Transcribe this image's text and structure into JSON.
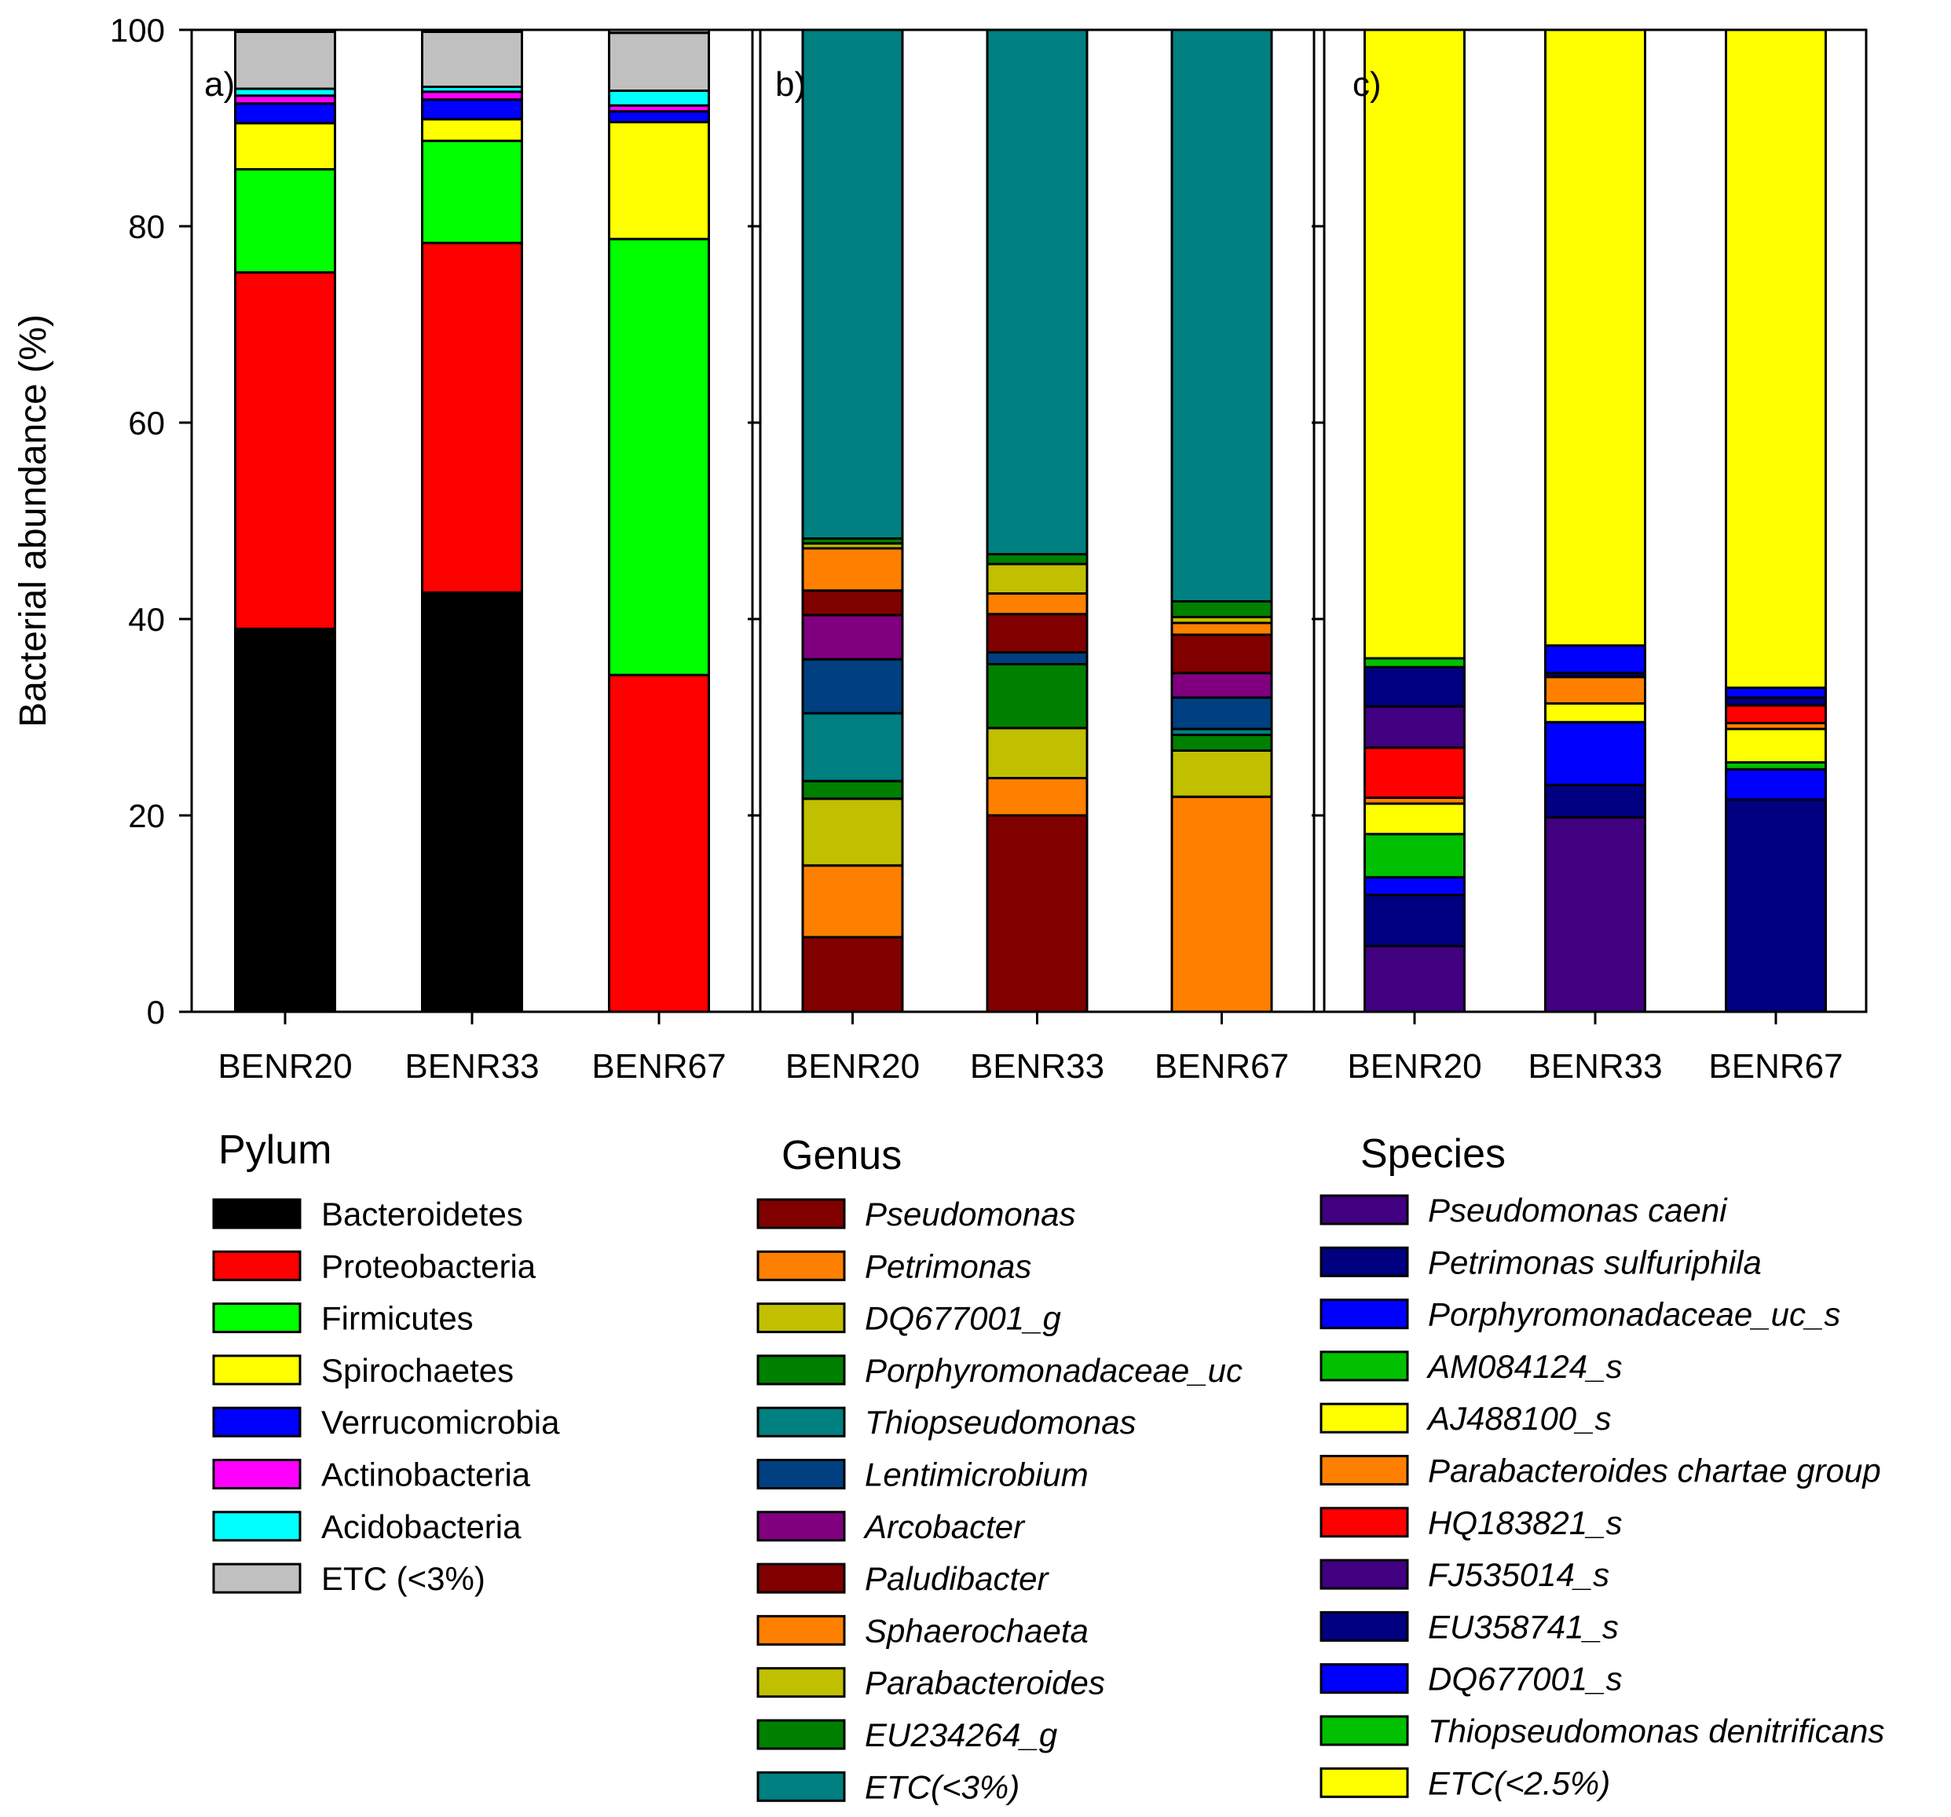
{
  "chart_data": [
    {
      "type": "bar",
      "stacked": true,
      "panel_label": "a)",
      "ylabel": "Bacterial abundance (%)",
      "ylim": [
        0,
        100
      ],
      "yticks": [
        0,
        20,
        40,
        60,
        80,
        100
      ],
      "categories": [
        "BENR20",
        "BENR33",
        "BENR67"
      ],
      "legend_title": "Pylum",
      "series": [
        {
          "name": "Bacteroidetes",
          "color": "#000000",
          "italic": false,
          "values": [
            39.0,
            42.7,
            0.0
          ]
        },
        {
          "name": "Proteobacteria",
          "color": "#FF0000",
          "italic": false,
          "values": [
            36.3,
            35.6,
            34.3
          ]
        },
        {
          "name": "Firmicutes",
          "color": "#00FF00",
          "italic": false,
          "values": [
            10.5,
            10.4,
            44.4
          ]
        },
        {
          "name": "Spirochaetes",
          "color": "#FFFF00",
          "italic": false,
          "values": [
            4.7,
            2.2,
            11.9
          ]
        },
        {
          "name": "Verrucomicrobia",
          "color": "#0000FF",
          "italic": false,
          "values": [
            2.0,
            2.0,
            1.1
          ]
        },
        {
          "name": "Actinobacteria",
          "color": "#FF00FF",
          "italic": false,
          "values": [
            0.8,
            0.8,
            0.6
          ]
        },
        {
          "name": "Acidobacteria",
          "color": "#00FFFF",
          "italic": false,
          "values": [
            0.7,
            0.5,
            1.5
          ]
        },
        {
          "name": "ETC (<3%)",
          "color": "#C0C0C0",
          "italic": false,
          "values": [
            5.8,
            5.6,
            5.9
          ]
        }
      ]
    },
    {
      "type": "bar",
      "stacked": true,
      "panel_label": "b)",
      "ylim": [
        0,
        100
      ],
      "categories": [
        "BENR20",
        "BENR33",
        "BENR67"
      ],
      "legend_title": "Genus",
      "series": [
        {
          "name": "Pseudomonas",
          "color": "#800000",
          "italic": true,
          "values": [
            7.6,
            20.0,
            0.0
          ]
        },
        {
          "name": "Petrimonas",
          "color": "#FF8000",
          "italic": true,
          "values": [
            7.3,
            3.8,
            21.9
          ]
        },
        {
          "name": "DQ677001_g",
          "color": "#C0C000",
          "italic": true,
          "values": [
            6.8,
            5.1,
            4.7
          ]
        },
        {
          "name": "Porphyromonadaceae_uc",
          "color": "#008000",
          "italic": true,
          "values": [
            1.8,
            6.5,
            1.6
          ]
        },
        {
          "name": "Thiopseudomonas",
          "color": "#008080",
          "italic": true,
          "values": [
            6.9,
            0.0,
            0.6
          ]
        },
        {
          "name": "Lentimicrobium",
          "color": "#004080",
          "italic": true,
          "values": [
            5.5,
            1.2,
            3.2
          ]
        },
        {
          "name": "Arcobacter",
          "color": "#800080",
          "italic": true,
          "values": [
            4.5,
            0.0,
            2.5
          ]
        },
        {
          "name": "Paludibacter",
          "color": "#800000",
          "italic": true,
          "values": [
            2.5,
            3.9,
            3.9
          ]
        },
        {
          "name": "Sphaerochaeta",
          "color": "#FF8000",
          "italic": true,
          "values": [
            4.3,
            2.1,
            1.2
          ]
        },
        {
          "name": "Parabacteroides",
          "color": "#C0C000",
          "italic": true,
          "values": [
            0.5,
            3.0,
            0.6
          ]
        },
        {
          "name": "EU234264_g",
          "color": "#008000",
          "italic": true,
          "values": [
            0.5,
            1.0,
            1.6
          ]
        },
        {
          "name": "ETC(<3%)",
          "color": "#008080",
          "italic": true,
          "values": [
            51.8,
            53.4,
            58.2
          ]
        }
      ]
    },
    {
      "type": "bar",
      "stacked": true,
      "panel_label": "c)",
      "ylim": [
        0,
        100
      ],
      "categories": [
        "BENR20",
        "BENR33",
        "BENR67"
      ],
      "legend_title": "Species",
      "series": [
        {
          "name": "Pseudomonas caeni",
          "color": "#400080",
          "italic": true,
          "values": [
            6.7,
            19.8,
            0.0
          ]
        },
        {
          "name": "Petrimonas sulfuriphila",
          "color": "#000080",
          "italic": true,
          "values": [
            5.2,
            3.3,
            21.6
          ]
        },
        {
          "name": "Porphyromonadaceae_uc_s",
          "color": "#0000FF",
          "italic": true,
          "values": [
            1.8,
            6.4,
            3.1
          ]
        },
        {
          "name": "AM084124_s",
          "color": "#00C000",
          "italic": true,
          "values": [
            4.4,
            0.0,
            0.7
          ]
        },
        {
          "name": "AJ488100_s",
          "color": "#FFFF00",
          "italic": true,
          "values": [
            3.1,
            1.9,
            3.4
          ]
        },
        {
          "name": "Parabacteroides chartae group",
          "color": "#FF8000",
          "italic": true,
          "values": [
            0.6,
            2.7,
            0.6
          ]
        },
        {
          "name": "HQ183821_s",
          "color": "#FF0000",
          "italic": true,
          "values": [
            5.1,
            0.0,
            1.8
          ]
        },
        {
          "name": "FJ535014_s",
          "color": "#400080",
          "italic": true,
          "values": [
            4.2,
            0.0,
            0.0
          ]
        },
        {
          "name": "EU358741_s",
          "color": "#000080",
          "italic": true,
          "values": [
            4.0,
            0.4,
            0.8
          ]
        },
        {
          "name": "DQ677001_s",
          "color": "#0000FF",
          "italic": true,
          "values": [
            0.0,
            2.8,
            1.0
          ]
        },
        {
          "name": "Thiopseudomonas denitrificans",
          "color": "#00C000",
          "italic": true,
          "values": [
            0.9,
            0.0,
            0.0
          ]
        },
        {
          "name": "ETC(<2.5%)",
          "color": "#FFFF00",
          "italic": true,
          "values": [
            64.0,
            62.7,
            67.0
          ]
        }
      ]
    }
  ]
}
